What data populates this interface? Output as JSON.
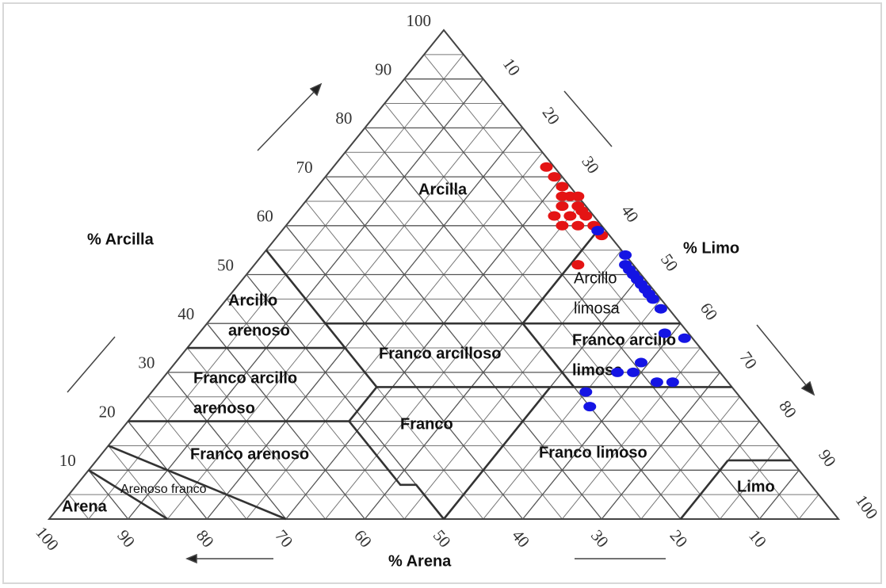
{
  "chart_data": {
    "type": "ternary",
    "axes": {
      "clay": {
        "label": "% Arcilla",
        "lim": [
          0,
          100
        ],
        "ticks": [
          10,
          20,
          30,
          40,
          50,
          60,
          70,
          80,
          90,
          100
        ]
      },
      "silt": {
        "label": "% Limo",
        "lim": [
          0,
          100
        ],
        "ticks": [
          10,
          20,
          30,
          40,
          50,
          60,
          70,
          80,
          90,
          100
        ]
      },
      "sand": {
        "label": "% Arena",
        "lim": [
          0,
          100
        ],
        "ticks": [
          100,
          90,
          80,
          70,
          60,
          50,
          40,
          30,
          20,
          10
        ]
      }
    },
    "regions": [
      {
        "lines": [
          "Arcilla"
        ]
      },
      {
        "lines": [
          "Arcillo",
          "arenoso"
        ]
      },
      {
        "lines": [
          "Franco arcilloso"
        ]
      },
      {
        "lines": [
          "Franco arcillo",
          "arenoso"
        ]
      },
      {
        "lines": [
          "Franco"
        ]
      },
      {
        "lines": [
          "Franco arenoso"
        ]
      },
      {
        "lines": [
          "Arenoso franco"
        ]
      },
      {
        "lines": [
          "Arena"
        ]
      },
      {
        "lines": [
          "Arcillo",
          "limosa"
        ]
      },
      {
        "lines": [
          "Franco arcillo",
          "limosa"
        ]
      },
      {
        "lines": [
          "Franco limoso"
        ]
      },
      {
        "lines": [
          "Limo"
        ]
      }
    ],
    "series": [
      {
        "color": "#e41414",
        "clay": [
          72,
          70,
          68,
          66,
          66,
          66,
          64,
          64,
          63,
          62,
          62,
          62,
          60,
          60,
          60,
          58,
          52
        ],
        "silt": [
          27,
          29,
          31,
          32,
          33,
          34,
          33,
          35,
          36,
          33,
          35,
          37,
          35,
          37,
          39,
          41,
          41
        ]
      },
      {
        "color": "#1414e4",
        "clay": [
          59,
          54,
          52,
          51,
          50,
          49,
          48,
          47,
          46,
          45,
          43,
          38,
          37,
          32,
          30,
          30,
          28,
          28,
          26,
          23
        ],
        "silt": [
          40,
          46,
          47,
          48,
          49,
          50,
          51,
          52,
          53,
          54,
          56,
          59,
          62,
          59,
          59,
          57,
          63,
          65,
          55,
          57
        ]
      }
    ]
  }
}
